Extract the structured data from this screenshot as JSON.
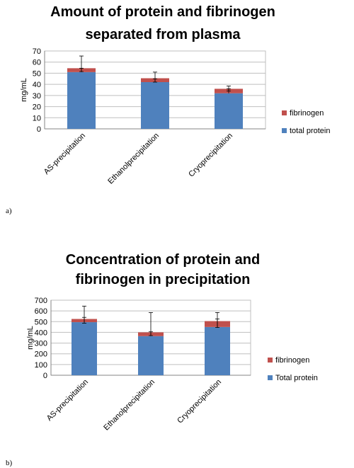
{
  "chart_data": [
    {
      "type": "bar",
      "stacked": true,
      "panel_label": "a)",
      "title_line1": "Amount of protein and fibrinogen",
      "title_line2": "separated from plasma",
      "ylabel": "mg/mL",
      "ylim": [
        0,
        70
      ],
      "yticks": [
        0,
        10,
        20,
        30,
        40,
        50,
        60,
        70
      ],
      "grid": true,
      "legend_position": "right",
      "categories": [
        "AS-precipitation",
        "Ethanolprecipitation",
        "Cryoprecipitation"
      ],
      "series": [
        {
          "name": "total protein",
          "color": "#4f81bd",
          "values": [
            51,
            42,
            32
          ]
        },
        {
          "name": "fibrinogen",
          "color": "#c0504d",
          "values": [
            3.5,
            3.5,
            4
          ]
        }
      ],
      "error_bars": [
        {
          "at": "total",
          "values": [
            54.5,
            45.5,
            36
          ],
          "plus": [
            11,
            5.5,
            2.5
          ],
          "minus": [
            3,
            3.5,
            2
          ]
        },
        {
          "at": "protein",
          "values": [
            51,
            42,
            32
          ],
          "plus": [
            3.5,
            3,
            4
          ],
          "minus": [
            0,
            0,
            0
          ]
        }
      ]
    },
    {
      "type": "bar",
      "stacked": true,
      "panel_label": "b)",
      "title_line1": "Concentration of protein and",
      "title_line2": "fibrinogen in precipitation",
      "ylabel": "mg/mL",
      "ylim": [
        0,
        700
      ],
      "yticks": [
        0,
        100,
        200,
        300,
        400,
        500,
        600,
        700
      ],
      "grid": true,
      "legend_position": "right",
      "categories": [
        "AS-precipitation",
        "Ethanolprecipitation",
        "Cryoprecipitation"
      ],
      "series": [
        {
          "name": "Total protein",
          "color": "#4f81bd",
          "values": [
            495,
            365,
            450
          ]
        },
        {
          "name": "fibrinogen",
          "color": "#c0504d",
          "values": [
            30,
            35,
            55
          ]
        }
      ],
      "error_bars": [
        {
          "at": "total",
          "values": [
            525,
            400,
            505
          ],
          "plus": [
            120,
            185,
            80
          ],
          "minus": [
            40,
            30,
            60
          ]
        },
        {
          "at": "protein",
          "values": [
            495,
            365,
            450
          ],
          "plus": [
            45,
            40,
            75
          ],
          "minus": [
            0,
            0,
            0
          ]
        }
      ]
    }
  ]
}
